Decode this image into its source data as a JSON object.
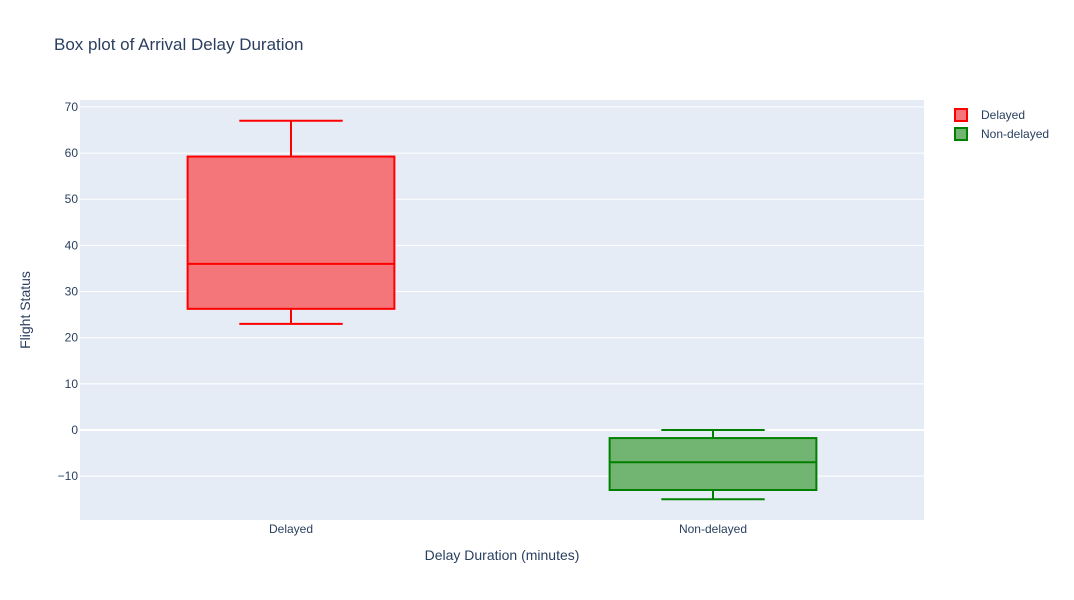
{
  "chart_data": {
    "type": "box",
    "title": "Box plot of Arrival Delay Duration",
    "xlabel": "Delay Duration (minutes)",
    "ylabel": "Flight Status",
    "categories": [
      "Delayed",
      "Non-delayed"
    ],
    "ylim": [
      -19.5,
      71.5
    ],
    "yticks": [
      -10,
      0,
      10,
      20,
      30,
      40,
      50,
      60,
      70
    ],
    "ytick_labels": [
      "−10",
      "0",
      "10",
      "20",
      "30",
      "40",
      "50",
      "60",
      "70"
    ],
    "grid": true,
    "legend_position": "top-right",
    "series": [
      {
        "name": "Delayed",
        "category": "Delayed",
        "min": 23,
        "q1": 26.25,
        "median": 36,
        "q3": 59.25,
        "max": 67,
        "color": "#ff0000",
        "fill": "#f4757a"
      },
      {
        "name": "Non-delayed",
        "category": "Non-delayed",
        "min": -15,
        "q1": -13,
        "median": -7,
        "q3": -1.75,
        "max": 0,
        "color": "#008000",
        "fill": "#72b572"
      }
    ]
  },
  "colors": {
    "plot_bg": "#e5ecf6",
    "grid": "#ffffff",
    "text": "#2a3f5f"
  }
}
